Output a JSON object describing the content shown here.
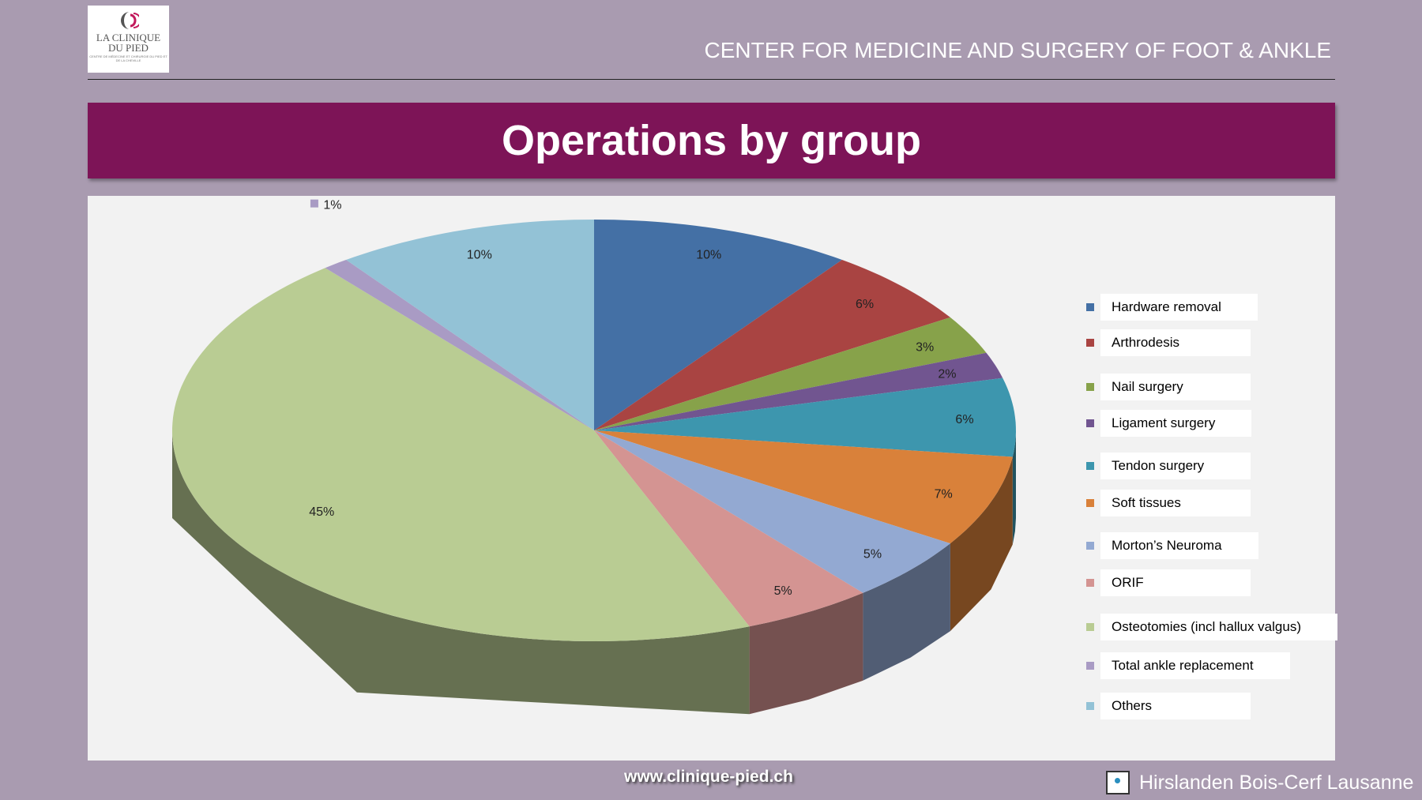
{
  "header": {
    "logo_text_line1": "LA CLINIQUE",
    "logo_text_line2": "DU PIED",
    "logo_subtext": "CENTRE DE MÉDECINE ET CHIRURGIE DU PIED ET DE LA CHEVILLE",
    "center_name": "CENTER FOR MEDICINE AND SURGERY OF FOOT & ANKLE"
  },
  "title": "Operations by group",
  "chart_data": {
    "type": "pie",
    "style": "3d",
    "title": "Operations by group",
    "legend_position": "right",
    "categories": [
      "Hardware removal",
      "Arthrodesis",
      "Nail surgery",
      "Ligament surgery",
      "Tendon surgery",
      "Soft tissues",
      "Morton’s Neuroma",
      "ORIF",
      "Osteotomies (incl hallux valgus)",
      "Total ankle replacement",
      "Others"
    ],
    "values": [
      10,
      6,
      3,
      2,
      6,
      7,
      5,
      5,
      45,
      1,
      10
    ],
    "labels": [
      "10%",
      "6%",
      "3%",
      "2%",
      "6%",
      "7%",
      "5%",
      "5%",
      "45%",
      "1%",
      "10%"
    ],
    "colors": [
      "#4470a5",
      "#a94442",
      "#87a24a",
      "#715590",
      "#3d96ae",
      "#d9813a",
      "#93a9d2",
      "#d49492",
      "#b9cc93",
      "#a99bc4",
      "#93c2d6"
    ]
  },
  "footer": {
    "url": "www.clinique-pied.ch",
    "brand": "Hirslanden Bois-Cerf Lausanne"
  }
}
